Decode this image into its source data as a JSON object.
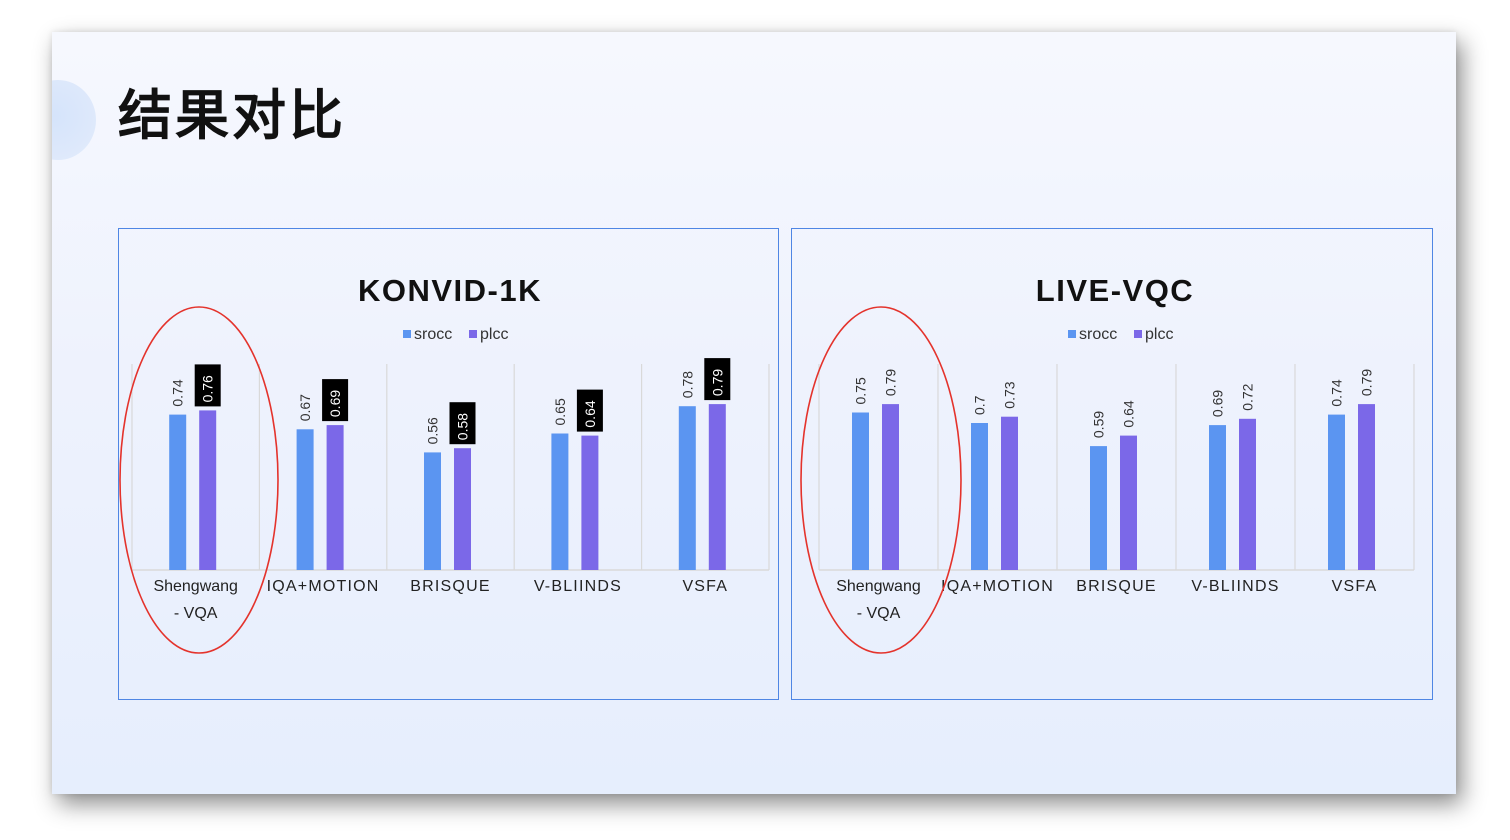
{
  "slide": {
    "title": "结果对比",
    "colors": {
      "srocc": "#5b95f1",
      "plcc": "#7b68e8",
      "frame": "#4f86e4",
      "highlight": "#e4332c",
      "label_box": "#000000",
      "gridline": "#d9d9d9"
    }
  },
  "chart_data": [
    {
      "type": "bar",
      "title": "KONVID-1K",
      "legend_position": "top-center",
      "grid": true,
      "ylim": [
        0,
        1
      ],
      "categories": [
        "Shengwang - VQA",
        "IQA+MOTION",
        "BRISQUE",
        "V-BLIINDS",
        "VSFA"
      ],
      "series": [
        {
          "name": "srocc",
          "values": [
            0.74,
            0.67,
            0.56,
            0.65,
            0.78
          ],
          "label_box": false
        },
        {
          "name": "plcc",
          "values": [
            0.76,
            0.69,
            0.58,
            0.64,
            0.79
          ],
          "label_box": true
        }
      ],
      "highlight_index": 0
    },
    {
      "type": "bar",
      "title": "LIVE-VQC",
      "legend_position": "top-center",
      "grid": true,
      "ylim": [
        0,
        1
      ],
      "categories": [
        "Shengwang - VQA",
        "IQA+MOTION",
        "BRISQUE",
        "V-BLIINDS",
        "VSFA"
      ],
      "series": [
        {
          "name": "srocc",
          "values": [
            0.75,
            0.7,
            0.59,
            0.69,
            0.74
          ],
          "label_box": false
        },
        {
          "name": "plcc",
          "values": [
            0.79,
            0.73,
            0.64,
            0.72,
            0.79
          ],
          "label_box": false
        }
      ],
      "highlight_index": 0
    }
  ]
}
